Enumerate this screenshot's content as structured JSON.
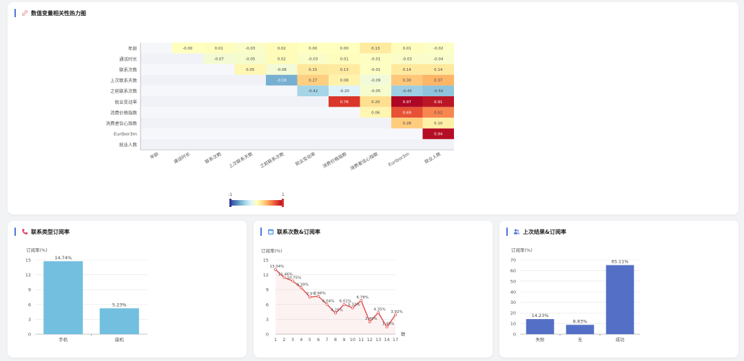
{
  "cards": {
    "heatmap": {
      "title": "数值变量相关性热力图",
      "icon": "link-icon"
    },
    "contact_type": {
      "title": "联系类型订阅率",
      "icon": "phone-icon"
    },
    "contact_count": {
      "title": "联系次数&订阅率",
      "icon": "calendar-icon"
    },
    "prev_outcome": {
      "title": "上次结果&订阅率",
      "icon": "people-icon"
    }
  },
  "colors": {
    "accent": "#4a72d8",
    "bar_light": "#73bfe0",
    "bar_dark": "#5470c6",
    "line": "#e05555",
    "scale": [
      "#313695",
      "#4575b4",
      "#74add1",
      "#abd9e9",
      "#e0f3f8",
      "#ffffbf",
      "#fee090",
      "#fdae61",
      "#f46d43",
      "#d73027",
      "#a50026"
    ]
  },
  "chart_data": [
    {
      "type": "heatmap",
      "labels": [
        "年龄",
        "通话时长",
        "联系次数",
        "上次联系天数",
        "之前联系次数",
        "就业变动率",
        "消费价格指数",
        "消费者信心指数",
        "Euribor3m",
        "就业人数"
      ],
      "matrix": [
        [
          null,
          -0.0,
          0.01,
          -0.03,
          0.02,
          0.0,
          0.0,
          0.13,
          0.01,
          -0.02
        ],
        [
          null,
          null,
          -0.07,
          -0.05,
          0.02,
          -0.03,
          0.01,
          -0.01,
          -0.03,
          -0.04
        ],
        [
          null,
          null,
          null,
          0.05,
          -0.08,
          0.15,
          0.13,
          -0.01,
          0.14,
          0.14
        ],
        [
          null,
          null,
          null,
          null,
          -0.59,
          0.27,
          0.08,
          -0.09,
          0.3,
          0.37
        ],
        [
          null,
          null,
          null,
          null,
          null,
          -0.42,
          -0.2,
          -0.05,
          -0.45,
          -0.5
        ],
        [
          null,
          null,
          null,
          null,
          null,
          null,
          0.78,
          0.2,
          0.97,
          0.91
        ],
        [
          null,
          null,
          null,
          null,
          null,
          null,
          null,
          0.06,
          0.69,
          0.52
        ],
        [
          null,
          null,
          null,
          null,
          null,
          null,
          null,
          null,
          0.28,
          0.1
        ],
        [
          null,
          null,
          null,
          null,
          null,
          null,
          null,
          null,
          null,
          0.94
        ],
        [
          null,
          null,
          null,
          null,
          null,
          null,
          null,
          null,
          null,
          null
        ]
      ],
      "display": [
        [
          "",
          "-0.00",
          "0.01",
          "-0.03",
          "0.02",
          "0.00",
          "0.00",
          "0.13",
          "0.01",
          "-0.02"
        ],
        [
          "",
          "",
          "-0.07",
          "-0.05",
          "0.02",
          "-0.03",
          "0.01",
          "-0.01",
          "-0.03",
          "-0.04"
        ],
        [
          "",
          "",
          "",
          "0.05",
          "-0.08",
          "0.15",
          "0.13",
          "-0.01",
          "0.14",
          "0.14"
        ],
        [
          "",
          "",
          "",
          "",
          "-0.59",
          "0.27",
          "0.08",
          "-0.09",
          "0.30",
          "0.37"
        ],
        [
          "",
          "",
          "",
          "",
          "",
          "-0.42",
          "-0.20",
          "-0.05",
          "-0.45",
          "-0.50"
        ],
        [
          "",
          "",
          "",
          "",
          "",
          "",
          "0.78",
          "0.20",
          "0.97",
          "0.91"
        ],
        [
          "",
          "",
          "",
          "",
          "",
          "",
          "",
          "0.06",
          "0.69",
          "0.52"
        ],
        [
          "",
          "",
          "",
          "",
          "",
          "",
          "",
          "",
          "0.28",
          "0.10"
        ],
        [
          "",
          "",
          "",
          "",
          "",
          "",
          "",
          "",
          "",
          "0.94"
        ],
        [
          "",
          "",
          "",
          "",
          "",
          "",
          "",
          "",
          "",
          ""
        ]
      ],
      "visual_map": {
        "min": -1,
        "max": 1,
        "min_label": "-1",
        "max_label": "1"
      }
    },
    {
      "type": "bar",
      "categories": [
        "手机",
        "座机"
      ],
      "values": [
        14.74,
        5.23
      ],
      "value_labels": [
        "14.74%",
        "5.23%"
      ],
      "ylabel": "订阅率(%)",
      "ylim": [
        0,
        15
      ],
      "yticks": [
        0,
        3,
        6,
        9,
        12,
        15
      ]
    },
    {
      "type": "line",
      "x": [
        1,
        2,
        3,
        4,
        5,
        6,
        7,
        8,
        9,
        10,
        11,
        12,
        13,
        14,
        15
      ],
      "xticks": [
        "1",
        "2",
        "3",
        "4",
        "5",
        "6",
        "7",
        "8",
        "9",
        "10",
        "11",
        "12",
        "13",
        "14",
        "17"
      ],
      "values": [
        13.04,
        11.46,
        10.75,
        9.39,
        7.5,
        7.66,
        6.04,
        4.25,
        6.01,
        5.32,
        6.78,
        2.49,
        4.35,
        1.45,
        3.92
      ],
      "value_labels": [
        "13.04%",
        "11.46%",
        "10.75%",
        "9.39%",
        "7.5%",
        "7.66%",
        "6.04%",
        "4.25%",
        "6.01%",
        "5.32%",
        "6.78%",
        "2.49%",
        "4.35%",
        "1.45%",
        "3.92%"
      ],
      "ylabel": "订阅率(%)",
      "xlabel": "联",
      "ylim": [
        0,
        15
      ],
      "yticks": [
        0,
        3,
        6,
        9,
        12,
        15
      ]
    },
    {
      "type": "bar",
      "categories": [
        "失败",
        "无",
        "成功"
      ],
      "values": [
        14.23,
        8.83,
        65.11
      ],
      "value_labels": [
        "14.23%",
        "8.83%",
        "65.11%"
      ],
      "ylabel": "订阅率(%)",
      "ylim": [
        0,
        70
      ],
      "yticks": [
        0,
        10,
        20,
        30,
        40,
        50,
        60,
        70
      ]
    }
  ]
}
